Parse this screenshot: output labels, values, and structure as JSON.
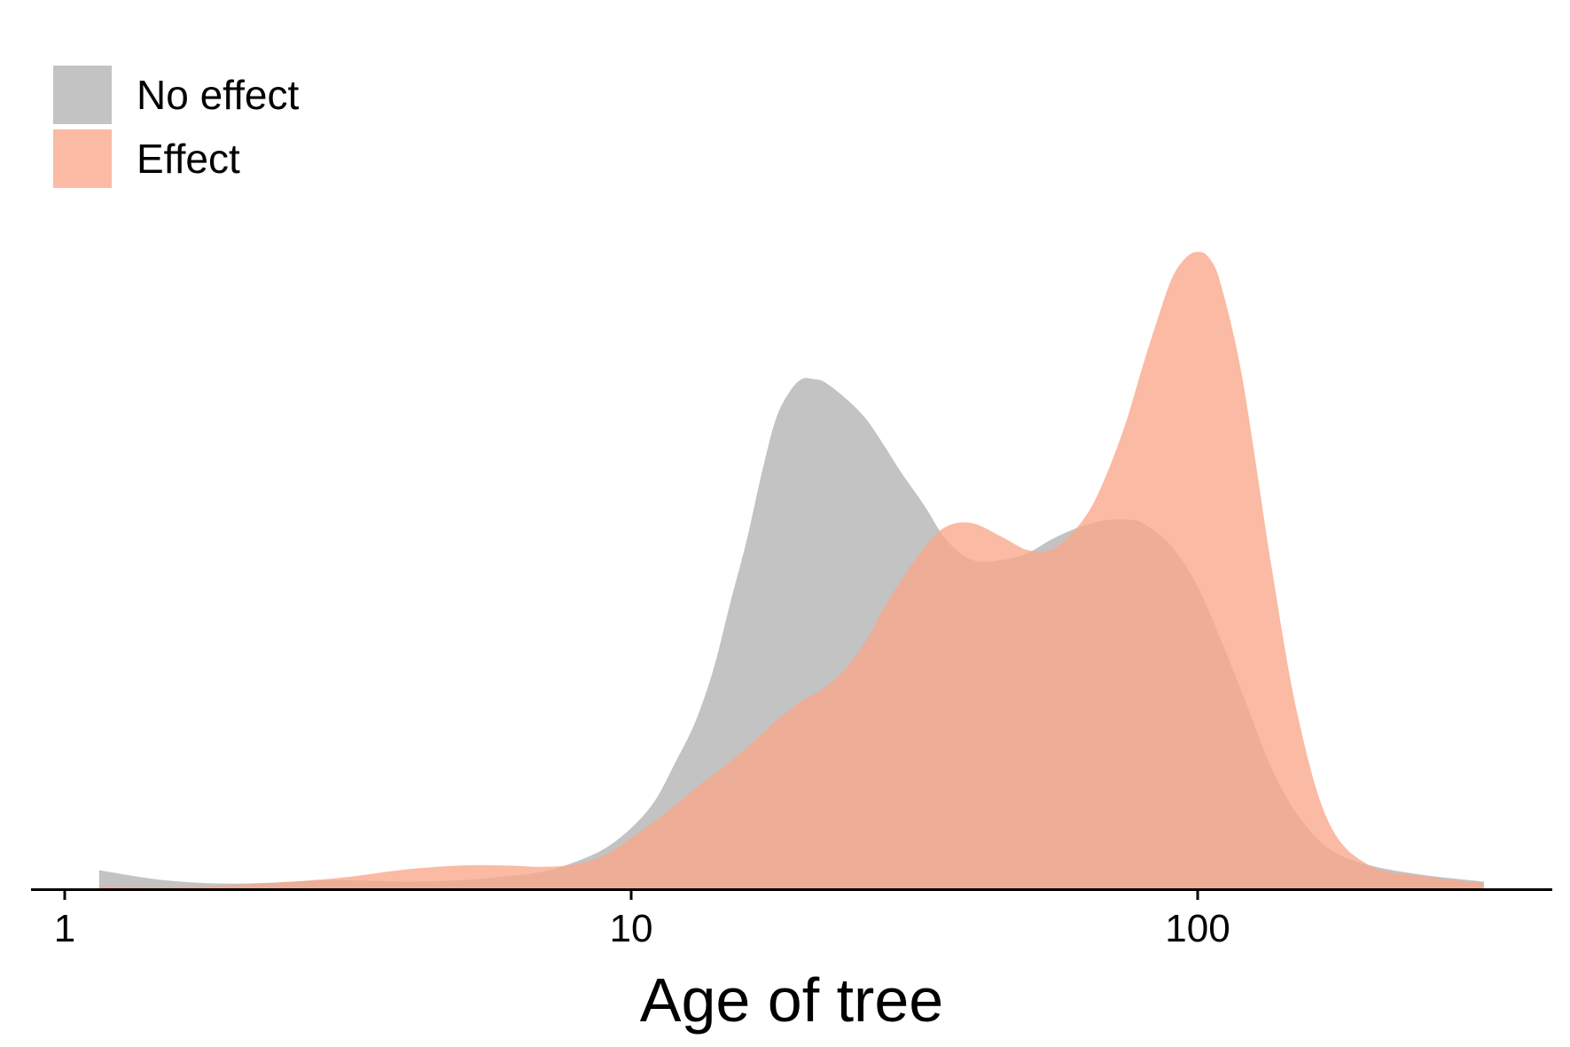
{
  "chart_data": {
    "type": "area",
    "subtype": "density",
    "xscale": "log",
    "xlabel": "Age of tree",
    "ylabel": "",
    "xlim": [
      0.88,
      390
    ],
    "ylim": [
      0,
      0.95
    ],
    "x_ticks": [
      {
        "value": 1,
        "label": "1"
      },
      {
        "value": 10,
        "label": "10"
      },
      {
        "value": 100,
        "label": "100"
      }
    ],
    "legend_position": "top-left",
    "grid": false,
    "series": [
      {
        "name": "No effect",
        "color": "#c3c3c3",
        "x": [
          1.15,
          1.5,
          2,
          3,
          4,
          5,
          6,
          7,
          8,
          9,
          10,
          11,
          12,
          13,
          14,
          15,
          16,
          17,
          18,
          19,
          20,
          21,
          22,
          24,
          26,
          28,
          30,
          33,
          36,
          40,
          45,
          50,
          55,
          60,
          65,
          70,
          75,
          80,
          90,
          100,
          110,
          120,
          135,
          150,
          170,
          200,
          250,
          320
        ],
        "y": [
          0.027,
          0.012,
          0.007,
          0.012,
          0.01,
          0.012,
          0.018,
          0.025,
          0.04,
          0.06,
          0.09,
          0.13,
          0.19,
          0.25,
          0.33,
          0.43,
          0.52,
          0.62,
          0.7,
          0.74,
          0.76,
          0.76,
          0.755,
          0.73,
          0.7,
          0.66,
          0.62,
          0.57,
          0.52,
          0.49,
          0.49,
          0.5,
          0.52,
          0.535,
          0.545,
          0.55,
          0.55,
          0.545,
          0.51,
          0.45,
          0.37,
          0.29,
          0.18,
          0.11,
          0.06,
          0.035,
          0.02,
          0.01
        ]
      },
      {
        "name": "Effect",
        "color": "#f9a68a",
        "x": [
          1.15,
          1.5,
          2,
          3,
          4,
          5,
          6,
          7,
          8,
          9,
          10,
          11,
          12,
          13,
          14,
          15,
          16,
          17,
          18,
          19,
          20,
          22,
          24,
          26,
          28,
          30,
          33,
          36,
          40,
          45,
          50,
          55,
          60,
          65,
          70,
          75,
          80,
          85,
          90,
          95,
          100,
          105,
          110,
          120,
          135,
          150,
          170,
          200,
          250,
          320
        ],
        "y": [
          0.003,
          0.002,
          0.005,
          0.015,
          0.028,
          0.034,
          0.034,
          0.032,
          0.036,
          0.05,
          0.075,
          0.1,
          0.125,
          0.15,
          0.17,
          0.19,
          0.21,
          0.23,
          0.25,
          0.265,
          0.28,
          0.3,
          0.33,
          0.37,
          0.42,
          0.46,
          0.51,
          0.54,
          0.545,
          0.525,
          0.505,
          0.505,
          0.53,
          0.57,
          0.63,
          0.7,
          0.78,
          0.85,
          0.91,
          0.94,
          0.95,
          0.94,
          0.9,
          0.76,
          0.48,
          0.26,
          0.1,
          0.035,
          0.018,
          0.008
        ]
      }
    ]
  }
}
